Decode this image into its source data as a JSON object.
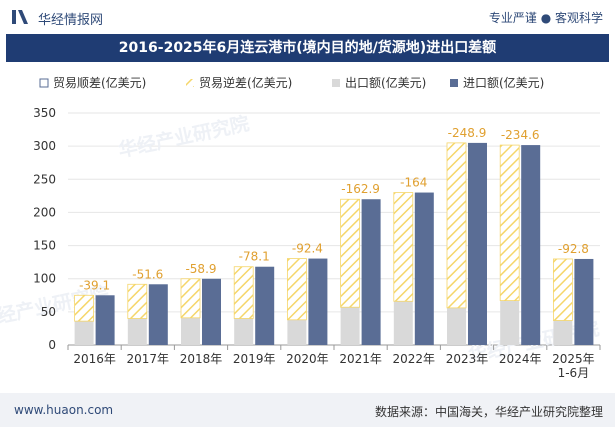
{
  "header": {
    "brand": "华经情报网",
    "tagline": "专业严谨 ● 客观科学"
  },
  "footer": {
    "site": "www.huaon.com",
    "source": "数据来源：中国海关，华经产业研究院整理"
  },
  "watermarks": [
    "华经产业研究院",
    "华经产业研究院",
    "华经产业研究院"
  ],
  "colors": {
    "import": "#5a6d95",
    "export": "#d9d9d9",
    "deficit_stripe": "#f5d66a",
    "title_bg": "#1f3c73"
  },
  "chart_data": {
    "type": "bar",
    "title": "2016-2025年6月连云港市(境内目的地/货源地)进出口差额",
    "categories": [
      "2016年",
      "2017年",
      "2018年",
      "2019年",
      "2020年",
      "2021年",
      "2022年",
      "2023年",
      "2024年",
      "2025年\n1-6月"
    ],
    "series": [
      {
        "name": "贸易顺差(亿美元)",
        "values": [
          0,
          0,
          0,
          0,
          0,
          0,
          0,
          0,
          0,
          0
        ]
      },
      {
        "name": "贸易逆差(亿美元)",
        "values": [
          -39.1,
          -51.6,
          -58.9,
          -78.1,
          -92.4,
          -162.9,
          -164,
          -248.9,
          -234.6,
          -92.8
        ]
      },
      {
        "name": "出口额(亿美元)",
        "values": [
          36,
          40,
          41,
          40,
          38,
          57,
          66,
          56,
          67,
          37
        ]
      },
      {
        "name": "进口额(亿美元)",
        "values": [
          75,
          91.6,
          99.9,
          118.1,
          130.4,
          219.9,
          230,
          304.9,
          301.6,
          129.8
        ]
      }
    ],
    "data_labels": [
      "-39.1",
      "-51.6",
      "-58.9",
      "-78.1",
      "-92.4",
      "-162.9",
      "-164",
      "-248.9",
      "-234.6",
      "-92.8"
    ],
    "yticks": [
      "0",
      "50",
      "100",
      "150",
      "200",
      "250",
      "300",
      "350"
    ],
    "ylim": [
      0,
      350
    ],
    "legend_position": "top-left"
  }
}
